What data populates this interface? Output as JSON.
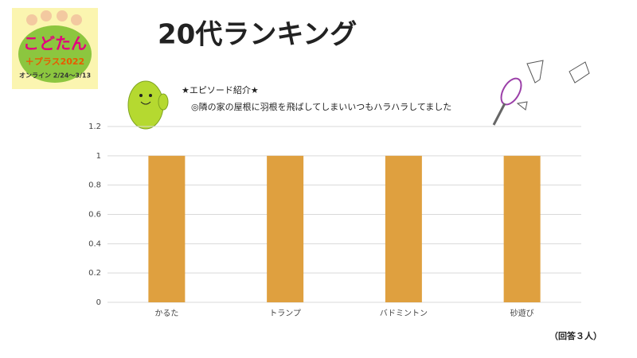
{
  "slide": {
    "title": "20代ランキング",
    "episode_heading": "★エピソード紹介★",
    "episode_text": "◎隣の家の屋根に羽根を飛ばしてしまいいつもハラハラしてました",
    "note": "（回答３人）",
    "logo": {
      "name": "こどたん",
      "sub": "＋プラス2022",
      "dates": "オンライン 2/24～3/13"
    }
  },
  "chart_data": {
    "type": "bar",
    "categories": [
      "かるた",
      "トランプ",
      "バドミントン",
      "砂遊び"
    ],
    "values": [
      1,
      1,
      1,
      1
    ],
    "color": "#dfa03f",
    "ylim": [
      0,
      1.2
    ],
    "yticks": [
      0,
      0.2,
      0.4,
      0.6,
      0.8,
      1,
      1.2
    ],
    "grid": true
  }
}
